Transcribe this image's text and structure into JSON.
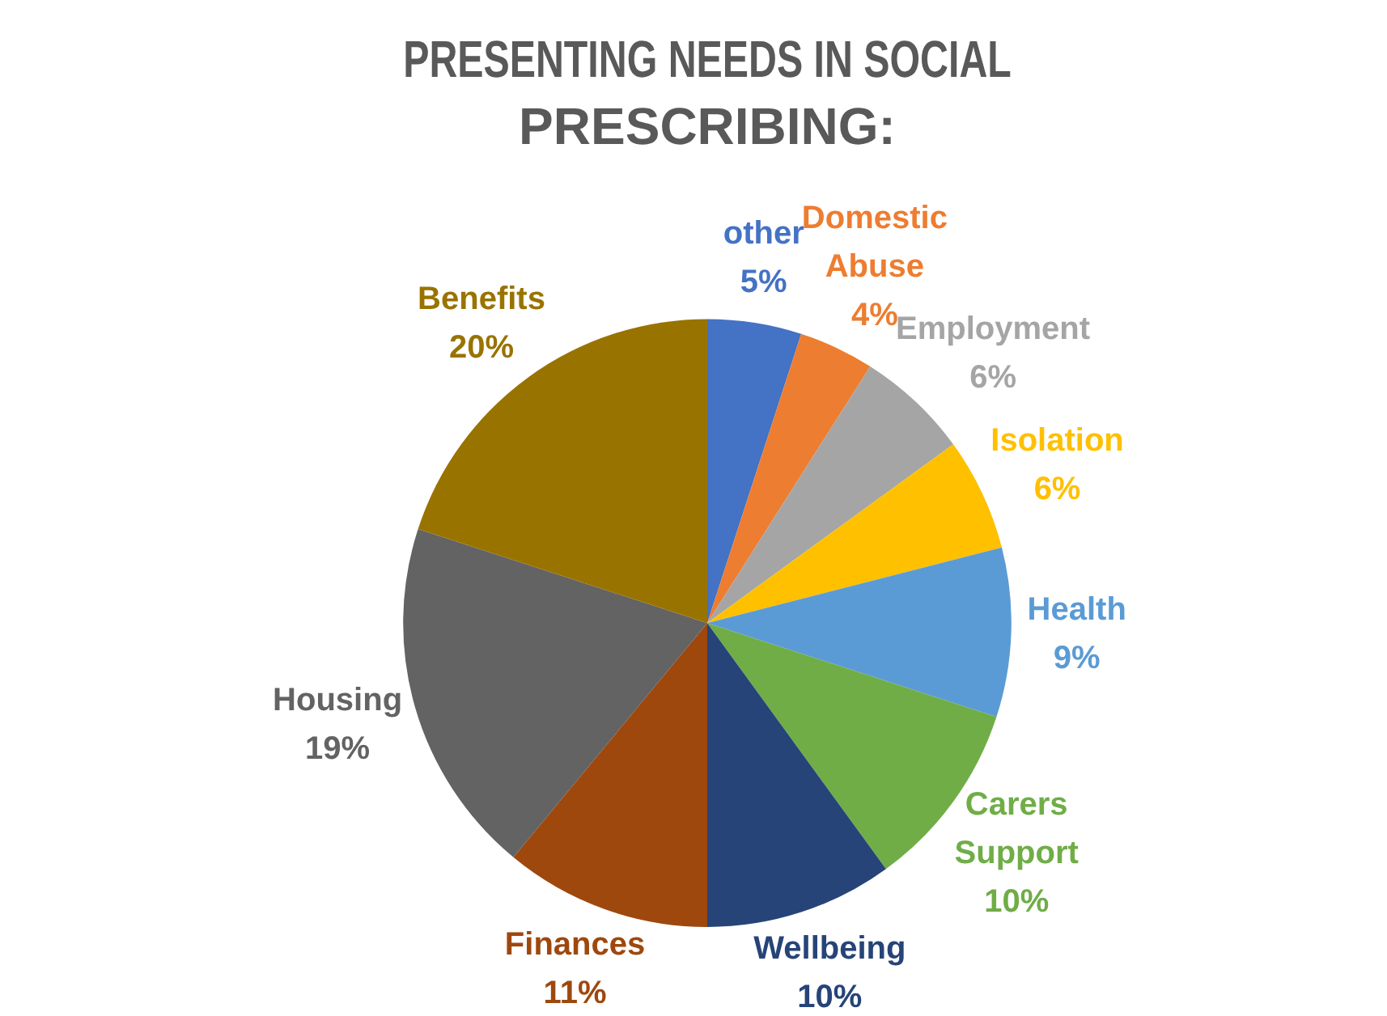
{
  "chart_data": {
    "type": "pie",
    "title": "PRESENTING NEEDS IN SOCIAL PRESCRIBING:",
    "categories": [
      "other",
      "Domestic Abuse",
      "Employment",
      "Isolation",
      "Health",
      "Carers Support",
      "Wellbeing",
      "Finances",
      "Housing",
      "Benefits"
    ],
    "values": [
      5,
      4,
      6,
      6,
      9,
      10,
      10,
      11,
      19,
      20
    ],
    "value_labels": [
      "5%",
      "4%",
      "6%",
      "6%",
      "9%",
      "10%",
      "10%",
      "11%",
      "19%",
      "20%"
    ],
    "colors": [
      "#4472c4",
      "#ed7d31",
      "#a5a5a5",
      "#ffc000",
      "#5b9bd5",
      "#70ad47",
      "#264478",
      "#9e480e",
      "#636363",
      "#997300"
    ],
    "legend": false
  }
}
